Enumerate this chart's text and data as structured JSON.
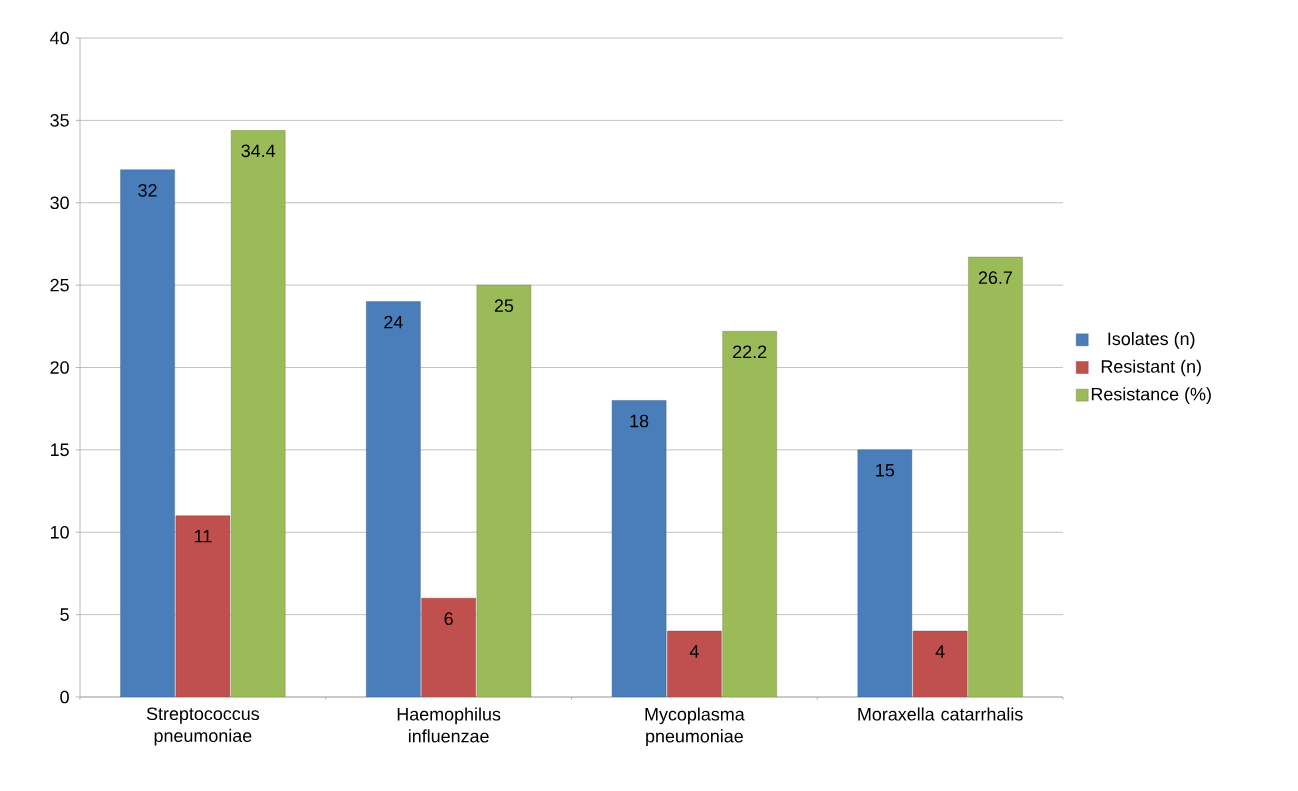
{
  "chart_data": {
    "type": "bar",
    "categories": [
      "Streptococcus pneumoniae",
      "Haemophilus influenzae",
      "Mycoplasma pneumoniae",
      "Moraxella catarrhalis"
    ],
    "series": [
      {
        "name": "Isolates (n)",
        "color": "#4a7ebb",
        "values": [
          32,
          24,
          18,
          15
        ]
      },
      {
        "name": "Resistant (n)",
        "color": "#c0504d",
        "values": [
          11,
          6,
          4,
          4
        ]
      },
      {
        "name": "Resistance (%)",
        "color": "#9bbb59",
        "values": [
          34.4,
          25,
          22.2,
          26.7
        ]
      }
    ],
    "ylim": [
      0,
      40
    ],
    "yticks": [
      0,
      5,
      10,
      15,
      20,
      25,
      30,
      35,
      40
    ],
    "grid": "y",
    "legend": "right",
    "data_labels": true
  }
}
